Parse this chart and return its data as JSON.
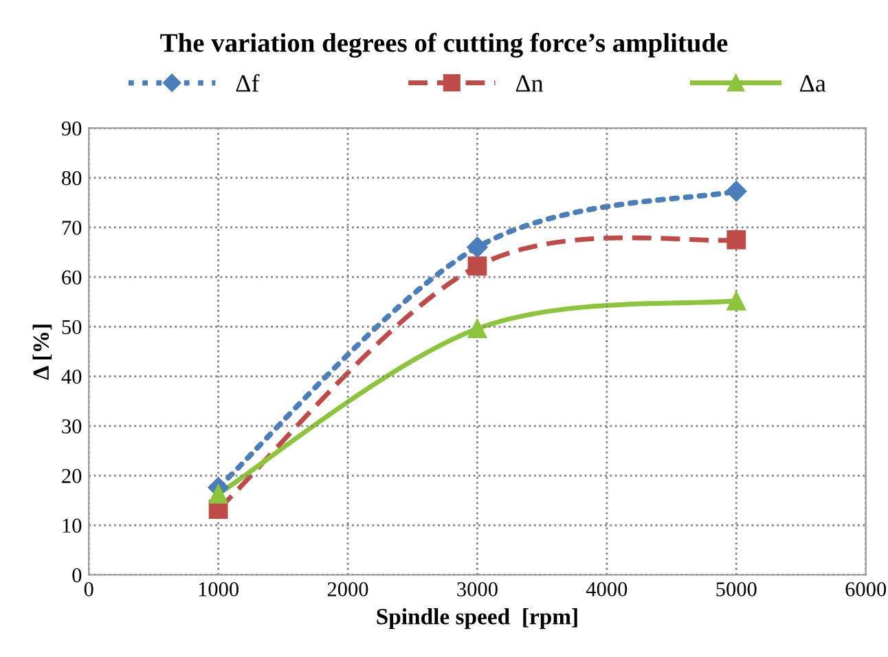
{
  "chart_data": {
    "type": "line",
    "title": "The variation degrees of cutting force’s amplitude",
    "xlabel": "Spindle speed  [rpm]",
    "ylabel": "Δ [%]",
    "x": [
      1000,
      3000,
      5000
    ],
    "series": [
      {
        "name": "Δf",
        "color": "#4a7ebb",
        "values": [
          17.6,
          66,
          77.3
        ],
        "marker": "diamond",
        "line_style": "dotted"
      },
      {
        "name": "Δn",
        "color": "#be4b48",
        "values": [
          13.2,
          62.2,
          67.5
        ],
        "marker": "square",
        "line_style": "dashed"
      },
      {
        "name": "Δa",
        "color": "#8cc43c",
        "values": [
          16.3,
          49.6,
          55.2
        ],
        "marker": "triangle",
        "line_style": "solid"
      }
    ],
    "xlim": [
      0,
      6000
    ],
    "xticks": [
      0,
      1000,
      2000,
      3000,
      4000,
      5000,
      6000
    ],
    "ylim": [
      0,
      90
    ],
    "yticks": [
      0,
      10,
      20,
      30,
      40,
      50,
      60,
      70,
      80,
      90
    ],
    "grid": true,
    "legend": "top"
  }
}
